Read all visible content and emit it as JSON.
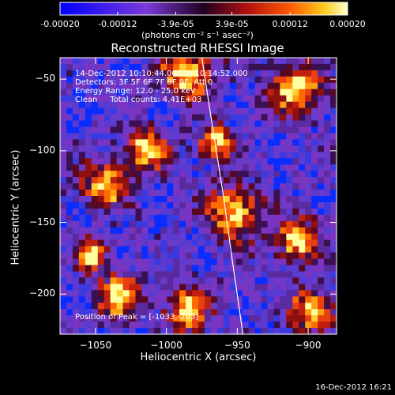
{
  "chart_data": {
    "type": "heatmap",
    "title": "Reconstructed RHESSI Image",
    "xlabel": "Heliocentric X (arcsec)",
    "ylabel": "Heliocentric Y (arcsec)",
    "xlim": [
      -1075,
      -880
    ],
    "ylim": [
      -228,
      -35
    ],
    "x_ticks": [
      -1050,
      -1000,
      -950,
      -900
    ],
    "x_tick_labels": [
      "−1050",
      "−1000",
      "−950",
      "−900"
    ],
    "y_ticks": [
      -50,
      -100,
      -150,
      -200
    ],
    "y_tick_labels": [
      "−50",
      "−100",
      "−150",
      "−200"
    ],
    "colorbar": {
      "range": [
        -0.0002,
        0.0002
      ],
      "ticks": [
        -0.0002,
        -0.00012,
        -3.9e-05,
        3.9e-05,
        0.00012,
        0.0002
      ],
      "tick_labels": [
        "-0.00020",
        "-0.00012",
        "-3.9e-05",
        "3.9e-05",
        "0.00012",
        "0.00020"
      ],
      "units": "(photons cm⁻² s⁻¹ asec⁻²)"
    },
    "annotations": {
      "time": "14-Dec-2012 10:10:44.000 to 10:14:52.000",
      "detectors": "Detectors: 3F 5F 6F 7F 8F 9F, Att 0",
      "energy": "Energy Range: 12.0 - 25.0 keV",
      "algorithm": "Clean     Total counts: 4.41E+03",
      "peak": "Position of Peak = [-1033,-203]"
    },
    "limb_curve": [
      [
        -975,
        -35
      ],
      [
        -968,
        -80
      ],
      [
        -960,
        -130
      ],
      [
        -953,
        -180
      ],
      [
        -946,
        -228
      ]
    ]
  },
  "footer": "16-Dec-2012 16:21"
}
